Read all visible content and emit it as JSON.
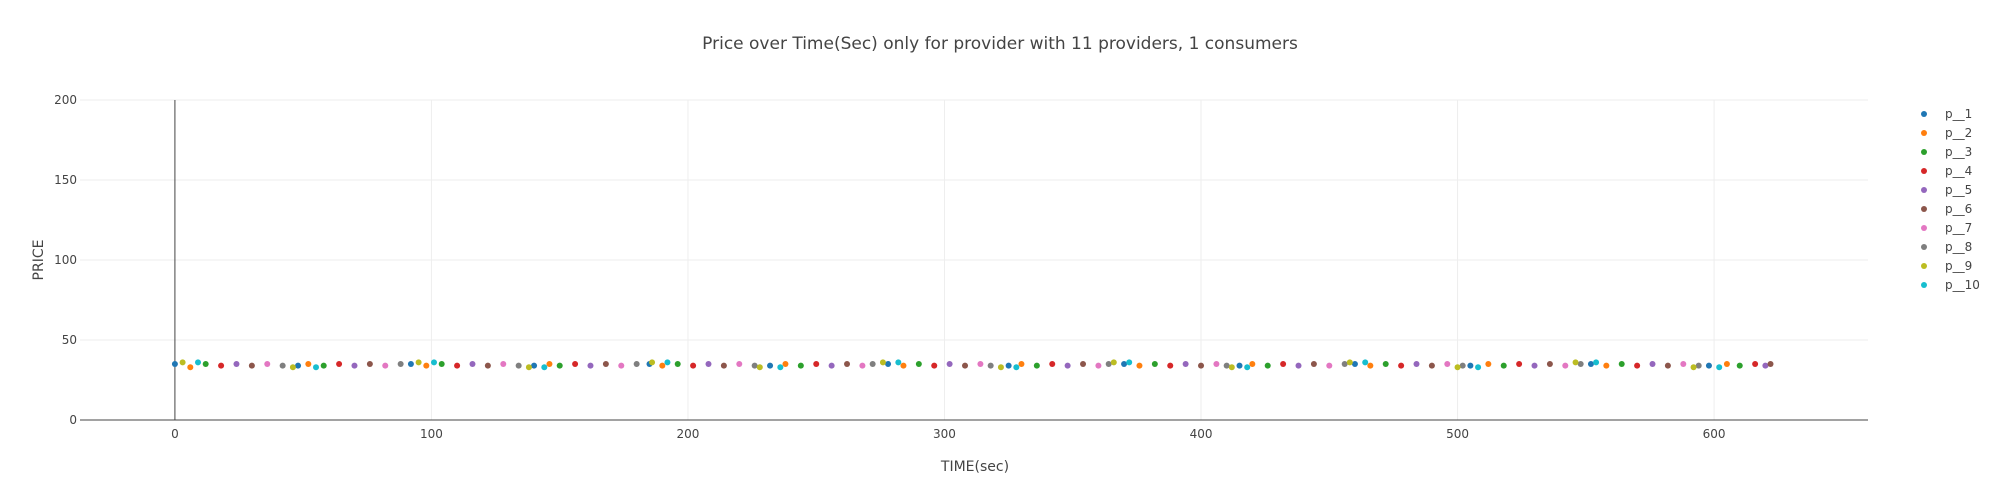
{
  "chart_data": {
    "type": "scatter",
    "title": "Price over Time(Sec) only for provider with 11 providers, 1 consumers",
    "xlabel": "TIME(sec)",
    "ylabel": "PRICE",
    "xlim": [
      -37,
      660
    ],
    "ylim": [
      0,
      200
    ],
    "x_ticks": [
      0,
      100,
      200,
      300,
      400,
      500,
      600
    ],
    "y_ticks": [
      0,
      50,
      100,
      150,
      200
    ],
    "grid": true,
    "legend_position": "top-right",
    "series": [
      {
        "name": "p__1",
        "color": "#1f77b4",
        "points": [
          [
            0,
            35
          ],
          [
            48,
            34
          ],
          [
            92,
            35
          ],
          [
            140,
            34
          ],
          [
            185,
            35
          ],
          [
            232,
            34
          ],
          [
            278,
            35
          ],
          [
            325,
            34
          ],
          [
            370,
            35
          ],
          [
            415,
            34
          ],
          [
            460,
            35
          ],
          [
            505,
            34
          ],
          [
            552,
            35
          ],
          [
            598,
            34
          ]
        ]
      },
      {
        "name": "p__2",
        "color": "#ff7f0e",
        "points": [
          [
            6,
            33
          ],
          [
            52,
            35
          ],
          [
            98,
            34
          ],
          [
            146,
            35
          ],
          [
            190,
            34
          ],
          [
            238,
            35
          ],
          [
            284,
            34
          ],
          [
            330,
            35
          ],
          [
            376,
            34
          ],
          [
            420,
            35
          ],
          [
            466,
            34
          ],
          [
            512,
            35
          ],
          [
            558,
            34
          ],
          [
            605,
            35
          ]
        ]
      },
      {
        "name": "p__3",
        "color": "#2ca02c",
        "points": [
          [
            12,
            35
          ],
          [
            58,
            34
          ],
          [
            104,
            35
          ],
          [
            150,
            34
          ],
          [
            196,
            35
          ],
          [
            244,
            34
          ],
          [
            290,
            35
          ],
          [
            336,
            34
          ],
          [
            382,
            35
          ],
          [
            426,
            34
          ],
          [
            472,
            35
          ],
          [
            518,
            34
          ],
          [
            564,
            35
          ],
          [
            610,
            34
          ]
        ]
      },
      {
        "name": "p__4",
        "color": "#d62728",
        "points": [
          [
            18,
            34
          ],
          [
            64,
            35
          ],
          [
            110,
            34
          ],
          [
            156,
            35
          ],
          [
            202,
            34
          ],
          [
            250,
            35
          ],
          [
            296,
            34
          ],
          [
            342,
            35
          ],
          [
            388,
            34
          ],
          [
            432,
            35
          ],
          [
            478,
            34
          ],
          [
            524,
            35
          ],
          [
            570,
            34
          ],
          [
            616,
            35
          ]
        ]
      },
      {
        "name": "p__5",
        "color": "#9467bd",
        "points": [
          [
            24,
            35
          ],
          [
            70,
            34
          ],
          [
            116,
            35
          ],
          [
            162,
            34
          ],
          [
            208,
            35
          ],
          [
            256,
            34
          ],
          [
            302,
            35
          ],
          [
            348,
            34
          ],
          [
            394,
            35
          ],
          [
            438,
            34
          ],
          [
            484,
            35
          ],
          [
            530,
            34
          ],
          [
            576,
            35
          ],
          [
            620,
            34
          ]
        ]
      },
      {
        "name": "p__6",
        "color": "#8c564b",
        "points": [
          [
            30,
            34
          ],
          [
            76,
            35
          ],
          [
            122,
            34
          ],
          [
            168,
            35
          ],
          [
            214,
            34
          ],
          [
            262,
            35
          ],
          [
            308,
            34
          ],
          [
            354,
            35
          ],
          [
            400,
            34
          ],
          [
            444,
            35
          ],
          [
            490,
            34
          ],
          [
            536,
            35
          ],
          [
            582,
            34
          ],
          [
            622,
            35
          ]
        ]
      },
      {
        "name": "p__7",
        "color": "#e377c2",
        "points": [
          [
            36,
            35
          ],
          [
            82,
            34
          ],
          [
            128,
            35
          ],
          [
            174,
            34
          ],
          [
            220,
            35
          ],
          [
            268,
            34
          ],
          [
            314,
            35
          ],
          [
            360,
            34
          ],
          [
            406,
            35
          ],
          [
            450,
            34
          ],
          [
            496,
            35
          ],
          [
            542,
            34
          ],
          [
            588,
            35
          ]
        ]
      },
      {
        "name": "p__8",
        "color": "#7f7f7f",
        "points": [
          [
            42,
            34
          ],
          [
            88,
            35
          ],
          [
            134,
            34
          ],
          [
            180,
            35
          ],
          [
            226,
            34
          ],
          [
            272,
            35
          ],
          [
            318,
            34
          ],
          [
            364,
            35
          ],
          [
            410,
            34
          ],
          [
            456,
            35
          ],
          [
            502,
            34
          ],
          [
            548,
            35
          ],
          [
            594,
            34
          ]
        ]
      },
      {
        "name": "p__9",
        "color": "#bcbd22",
        "points": [
          [
            3,
            36
          ],
          [
            46,
            33
          ],
          [
            95,
            36
          ],
          [
            138,
            33
          ],
          [
            186,
            36
          ],
          [
            228,
            33
          ],
          [
            276,
            36
          ],
          [
            322,
            33
          ],
          [
            366,
            36
          ],
          [
            412,
            33
          ],
          [
            458,
            36
          ],
          [
            500,
            33
          ],
          [
            546,
            36
          ],
          [
            592,
            33
          ]
        ]
      },
      {
        "name": "p__10",
        "color": "#17becf",
        "points": [
          [
            9,
            36
          ],
          [
            55,
            33
          ],
          [
            101,
            36
          ],
          [
            144,
            33
          ],
          [
            192,
            36
          ],
          [
            236,
            33
          ],
          [
            282,
            36
          ],
          [
            328,
            33
          ],
          [
            372,
            36
          ],
          [
            418,
            33
          ],
          [
            464,
            36
          ],
          [
            508,
            33
          ],
          [
            554,
            36
          ],
          [
            602,
            33
          ]
        ]
      }
    ]
  }
}
